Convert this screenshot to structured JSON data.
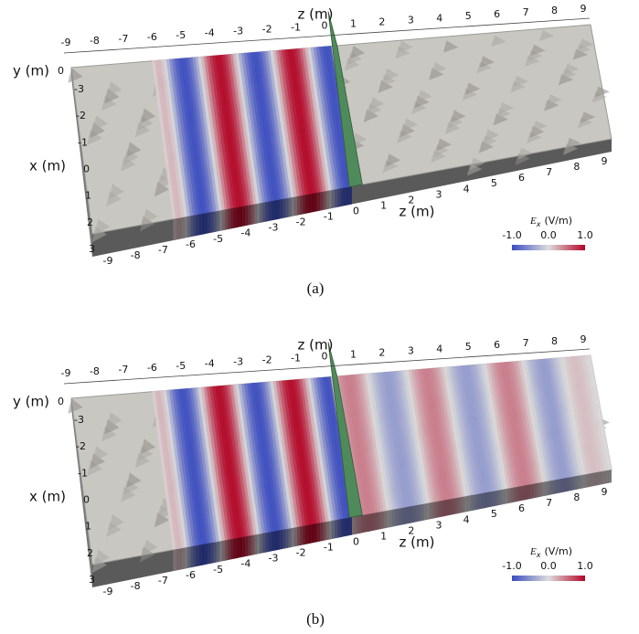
{
  "panels": [
    {
      "caption": "(a)",
      "top_axis_label": "z (m)",
      "bottom_axis_label": "z (m)",
      "x_axis_label": "x (m)",
      "y_axis_label": "y (m)",
      "top_ticks": [
        "-9",
        "-8",
        "-7",
        "-6",
        "-5",
        "-4",
        "-3",
        "-2",
        "-1",
        "0",
        "1",
        "2",
        "3",
        "4",
        "5",
        "6",
        "7",
        "8",
        "9"
      ],
      "bottom_ticks": [
        "-9",
        "-8",
        "-7",
        "-6",
        "-5",
        "-4",
        "-3",
        "-2",
        "-1",
        "0",
        "1",
        "2",
        "3",
        "4",
        "5",
        "6",
        "7",
        "8",
        "9"
      ],
      "x_ticks": [
        "-3",
        "-2",
        "-1",
        "0",
        "1",
        "2",
        "3"
      ],
      "y_ticks": [
        "0"
      ],
      "colorbar": {
        "symbol": "E",
        "subscript": "x",
        "unit": "(V/m)",
        "ticks": [
          "-1.0",
          "0.0",
          "1.0"
        ]
      }
    },
    {
      "caption": "(b)",
      "top_axis_label": "z (m)",
      "bottom_axis_label": "z (m)",
      "x_axis_label": "x (m)",
      "y_axis_label": "y (m)",
      "top_ticks": [
        "-9",
        "-8",
        "-7",
        "-6",
        "-5",
        "-4",
        "-3",
        "-2",
        "-1",
        "0",
        "1",
        "2",
        "3",
        "4",
        "5",
        "6",
        "7",
        "8",
        "9"
      ],
      "bottom_ticks": [
        "-9",
        "-8",
        "-7",
        "-6",
        "-5",
        "-4",
        "-3",
        "-2",
        "-1",
        "0",
        "1",
        "2",
        "3",
        "4",
        "5",
        "6",
        "7",
        "8",
        "9"
      ],
      "x_ticks": [
        "-3",
        "-2",
        "-1",
        "0",
        "1",
        "2",
        "3"
      ],
      "y_ticks": [
        "0"
      ],
      "colorbar": {
        "symbol": "E",
        "subscript": "x",
        "unit": "(V/m)",
        "ticks": [
          "-1.0",
          "0.0",
          "1.0"
        ]
      }
    }
  ]
}
